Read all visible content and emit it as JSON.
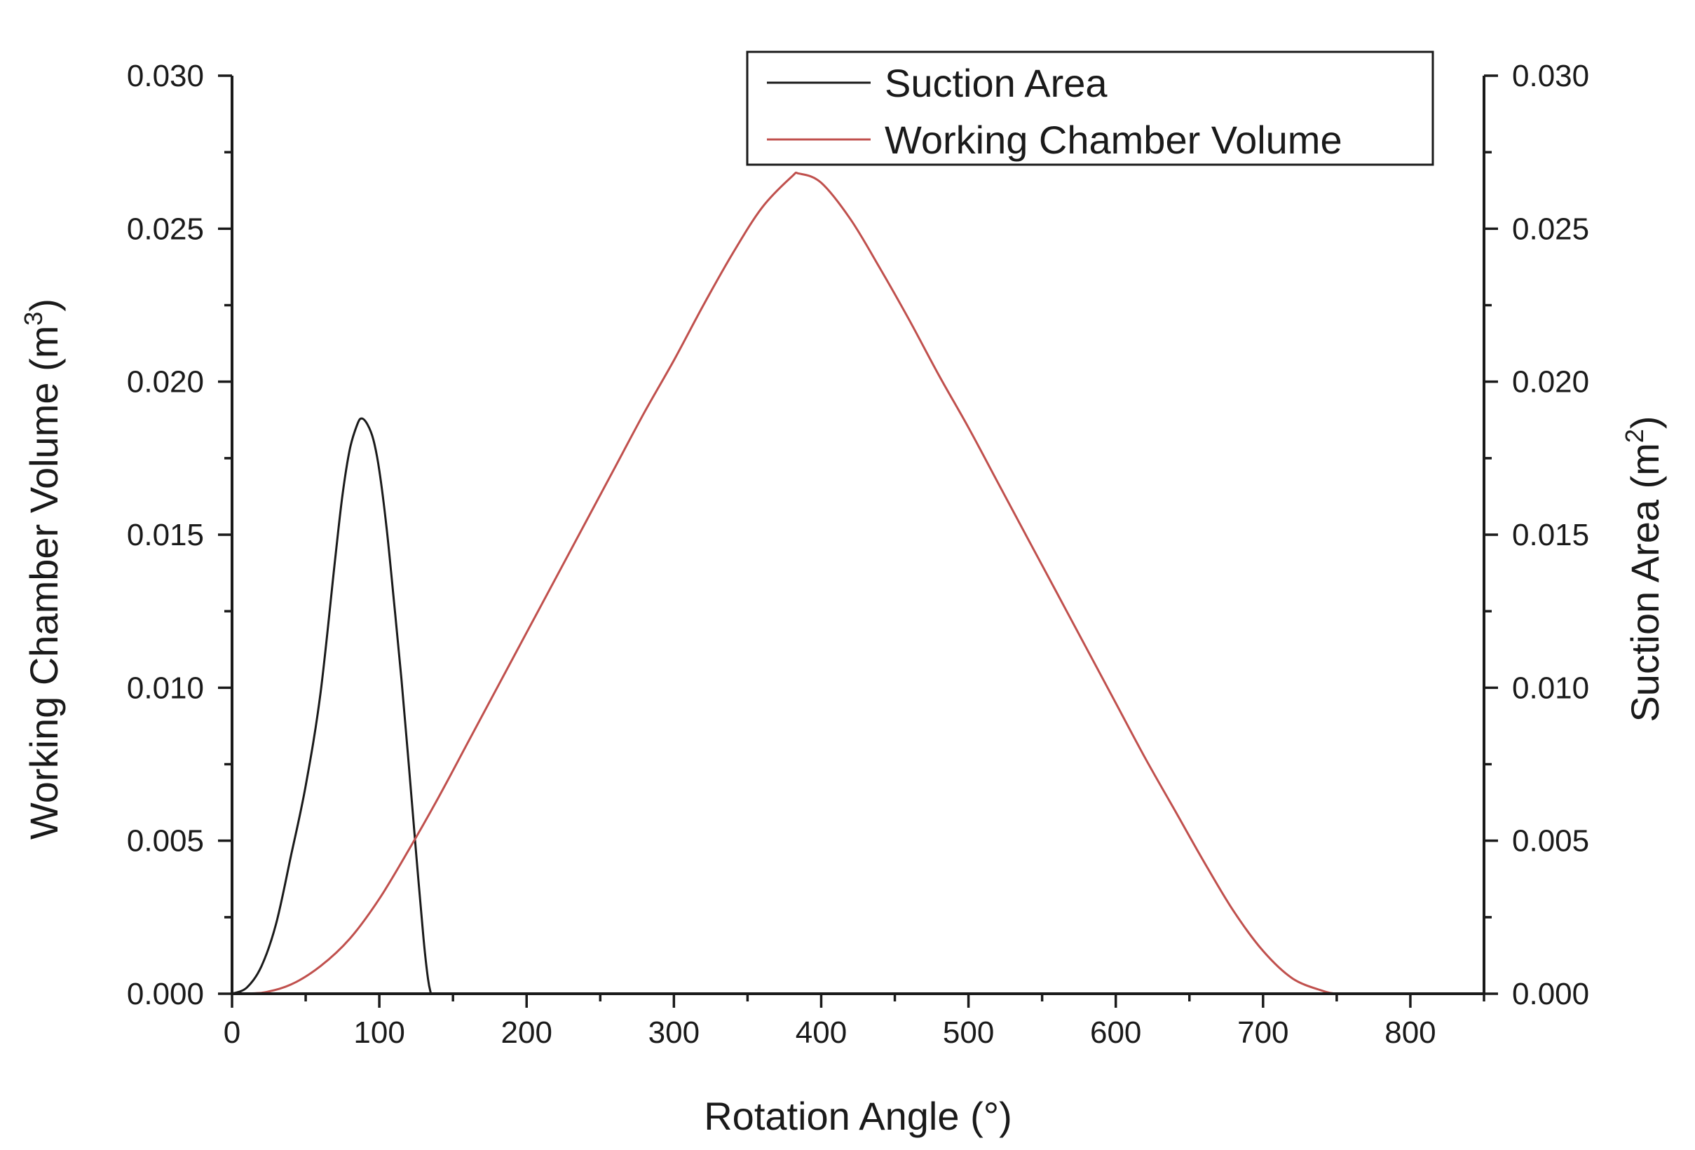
{
  "chart_data": {
    "type": "line",
    "xlabel": "Rotation Angle (°)",
    "ylabel_left": {
      "text": "Working Chamber Volume (m",
      "sup": "3",
      "close": ")"
    },
    "ylabel_right": {
      "text": "Suction Area (m",
      "sup": "2",
      "close": ")"
    },
    "xlim": [
      0,
      850
    ],
    "ylim": [
      0,
      0.03
    ],
    "x_ticks": [
      0,
      100,
      200,
      300,
      400,
      500,
      600,
      700,
      800
    ],
    "x_tick_labels": [
      "0",
      "100",
      "200",
      "300",
      "400",
      "500",
      "600",
      "700",
      "800"
    ],
    "y_ticks": [
      0,
      0.005,
      0.01,
      0.015,
      0.02,
      0.025,
      0.03
    ],
    "y_tick_labels": [
      "0.000",
      "0.005",
      "0.010",
      "0.015",
      "0.020",
      "0.025",
      "0.030"
    ],
    "legend_position": "top-right",
    "series": [
      {
        "name": "Suction Area",
        "color": "#1a1a1a",
        "axis": "right",
        "x": [
          0,
          10,
          20,
          30,
          40,
          50,
          60,
          70,
          75,
          80,
          85,
          88,
          92,
          96,
          100,
          105,
          110,
          115,
          120,
          125,
          130,
          133,
          135
        ],
        "y": [
          0,
          0.0002,
          0.0009,
          0.0023,
          0.0045,
          0.0068,
          0.0098,
          0.0142,
          0.0163,
          0.0178,
          0.0186,
          0.0188,
          0.0186,
          0.0181,
          0.0171,
          0.0152,
          0.0128,
          0.0103,
          0.0075,
          0.0046,
          0.0018,
          0.0005,
          0
        ]
      },
      {
        "name": "Working Chamber Volume",
        "color": "#c0504d",
        "axis": "left",
        "x": [
          0,
          20,
          40,
          60,
          80,
          100,
          120,
          140,
          160,
          180,
          200,
          220,
          240,
          260,
          280,
          300,
          320,
          340,
          360,
          380,
          385,
          400,
          420,
          440,
          460,
          480,
          500,
          520,
          540,
          560,
          580,
          600,
          620,
          640,
          660,
          680,
          700,
          720,
          740,
          750,
          760,
          770,
          850
        ],
        "y": [
          0,
          3e-05,
          0.0003,
          0.0009,
          0.0018,
          0.0031,
          0.0047,
          0.0064,
          0.0082,
          0.01,
          0.0118,
          0.0136,
          0.0154,
          0.0172,
          0.019,
          0.0207,
          0.0225,
          0.0242,
          0.0257,
          0.0267,
          0.0268,
          0.0265,
          0.0253,
          0.0237,
          0.022,
          0.0202,
          0.0185,
          0.0167,
          0.0149,
          0.0131,
          0.0113,
          0.0095,
          0.0077,
          0.006,
          0.0043,
          0.0027,
          0.0014,
          0.0005,
          0.0001,
          0,
          0,
          0,
          0
        ]
      }
    ]
  }
}
